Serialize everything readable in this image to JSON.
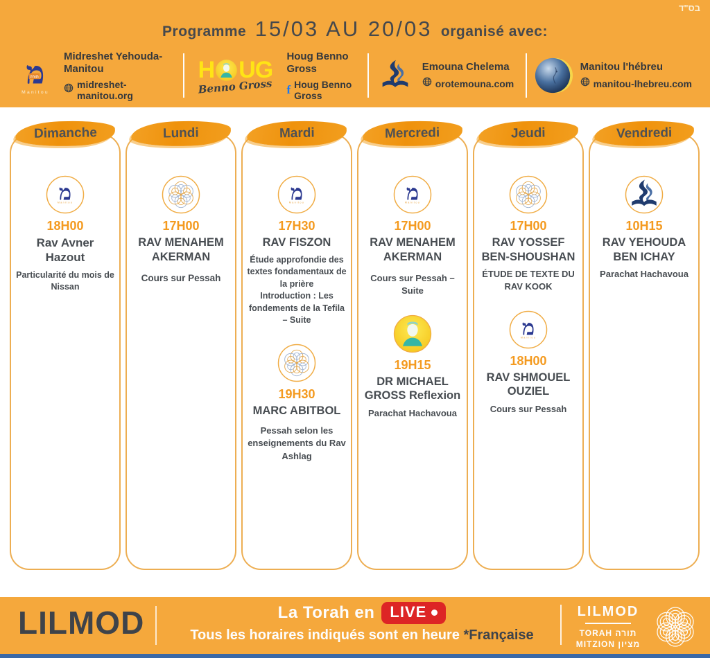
{
  "bsd": "בס\"ד",
  "header": {
    "title_prefix": "Programme",
    "dates": "15/03  AU  20/03",
    "title_suffix": "organisé avec:",
    "partners": [
      {
        "name": "Midreshet Yehouda-Manitou",
        "site": "midreshet-manitou.org",
        "logo": "midreshet-large"
      },
      {
        "name": "Houg Benno Gross",
        "facebook": "Houg Benno Gross",
        "logo": "houg"
      },
      {
        "name": "Emouna Chelema",
        "site": "orotemouna.com",
        "logo": "emouna-large"
      },
      {
        "name": "Manitou l'hébreu",
        "site": "manitou-lhebreu.com",
        "logo": "manitou-sphere"
      }
    ]
  },
  "logos": {
    "midreshet_glyph": "מ",
    "midreshet_word": "Manitou",
    "houg_h": "H",
    "houg_ug": "UG",
    "houg_script": "Benno Gross"
  },
  "days": [
    {
      "label": "Dimanche",
      "events": [
        {
          "logo": "midreshet",
          "time": "18H00",
          "speaker": "Rav Avner Hazout",
          "desc": "Particularité du mois de Nissan"
        }
      ]
    },
    {
      "label": "Lundi",
      "events": [
        {
          "logo": "flower",
          "time": "17H00",
          "speaker": "RAV MENAHEM AKERMAN",
          "desc": "Cours sur Pessah"
        }
      ]
    },
    {
      "label": "Mardi",
      "events": [
        {
          "logo": "midreshet",
          "time": "17H30",
          "speaker": "RAV FISZON",
          "desc": "Étude approfondie des textes fondamentaux de la prière\nIntroduction : Les fondements de la Tefila – Suite"
        },
        {
          "logo": "flower",
          "time": "19H30",
          "speaker": "MARC ABITBOL",
          "desc": "Pessah selon les enseignements du Rav Ashlag"
        }
      ]
    },
    {
      "label": "Mercredi",
      "events": [
        {
          "logo": "midreshet",
          "time": "17H00",
          "speaker": "RAV MENAHEM AKERMAN",
          "desc": "Cours sur Pessah – Suite"
        },
        {
          "logo": "portrait",
          "time": "19H15",
          "speaker": "DR MICHAEL GROSS Reflexion",
          "desc": "Parachat Hachavoua"
        }
      ]
    },
    {
      "label": "Jeudi",
      "events": [
        {
          "logo": "flower",
          "time": "17H00",
          "speaker": "RAV YOSSEF BEN-SHOUSHAN",
          "desc": "ÉTUDE DE TEXTE DU RAV KOOK"
        },
        {
          "logo": "midreshet",
          "time": "18H00",
          "speaker": "RAV SHMOUEL OUZIEL",
          "desc": "Cours sur Pessah"
        }
      ]
    },
    {
      "label": "Vendredi",
      "events": [
        {
          "logo": "emouna",
          "time": "10H15",
          "speaker": "RAV YEHOUDA BEN ICHAY",
          "desc": "Parachat Hachavoua"
        }
      ]
    }
  ],
  "footer": {
    "brand": "LILMOD",
    "tagline_prefix": "La Torah en",
    "live_label": "LIVE",
    "note_white": "Tous les horaires indiqués sont en heure ",
    "note_dark": "*Française",
    "logo_title": "LILMOD",
    "logo_line1": "TORAH תורה",
    "logo_line2": "MITZION מציון"
  },
  "colors": {
    "header_orange": "#F5A83C",
    "ribbon_orange": "#F0930D",
    "time_orange": "#F49A1F",
    "dark_text": "#474C51",
    "live_red": "#DD2525",
    "bottom_blue": "#3A68A6",
    "card_border": "#EDAE52",
    "logo_blue": "#2B3990"
  }
}
